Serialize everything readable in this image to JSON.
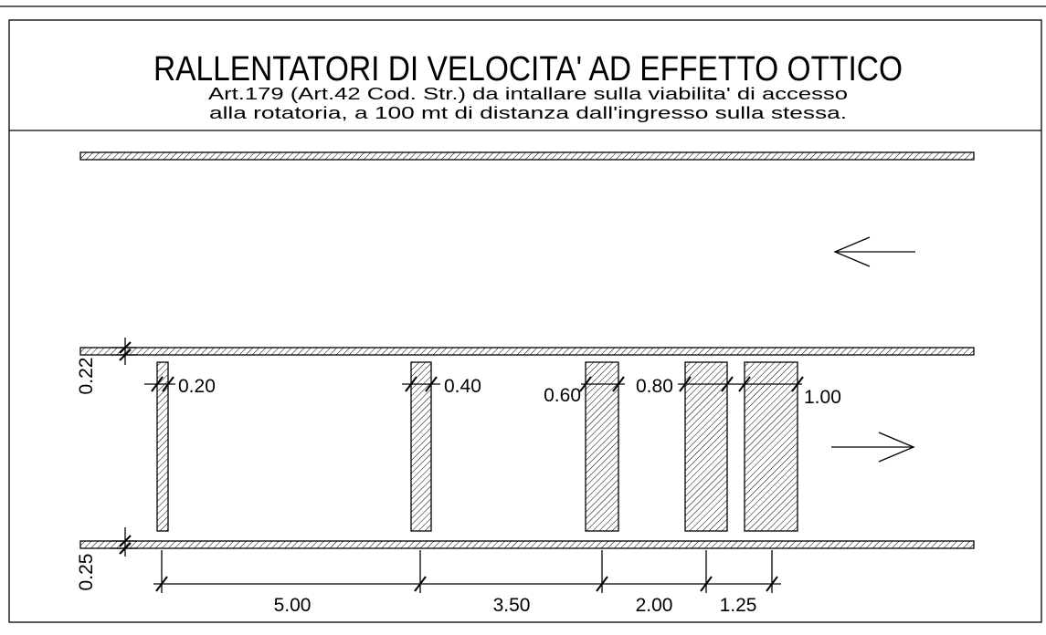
{
  "title": "RALLENTATORI DI VELOCITA' AD EFFETTO OTTICO",
  "subtitle": [
    "Art.179 (Art.42 Cod. Str.) da intallare sulla viabilita' di accesso",
    "alla rotatoria, a 100 mt di distanza dall'ingresso sulla stessa."
  ],
  "bar_widths": [
    "0.20",
    "0.40",
    "0.60",
    "0.80",
    "1.00"
  ],
  "spacings": [
    "5.00",
    "3.50",
    "2.00",
    "1.25"
  ],
  "stripe_widths": [
    "0.22",
    "0.25"
  ]
}
